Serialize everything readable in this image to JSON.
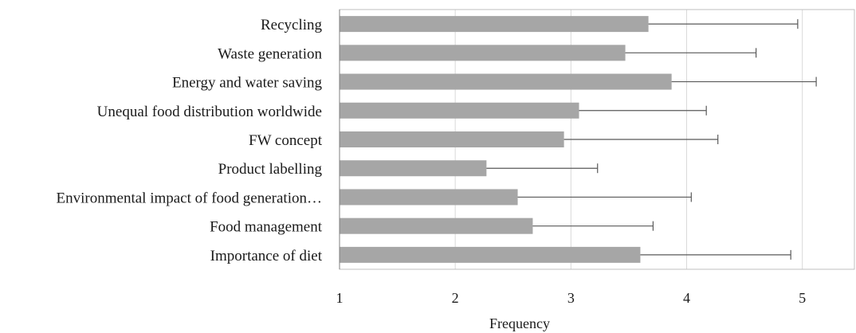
{
  "chart_data": {
    "type": "bar",
    "orientation": "horizontal",
    "categories": [
      "Recycling",
      "Waste generation",
      "Energy and water saving",
      "Unequal food distribution worldwide",
      "FW concept",
      "Product labelling",
      "Environmental impact of food generation…",
      "Food management",
      "Importance of diet"
    ],
    "series": [
      {
        "values": [
          3.67,
          3.47,
          3.87,
          3.07,
          2.94,
          2.27,
          2.54,
          2.67,
          3.6
        ],
        "error": [
          1.29,
          1.13,
          1.25,
          1.1,
          1.33,
          0.96,
          1.5,
          1.04,
          1.3
        ]
      }
    ],
    "xlabel": "Frequency",
    "ylabel": "",
    "xlim": [
      1,
      5.45
    ],
    "xticks": [
      1,
      2,
      3,
      4,
      5
    ],
    "grid": "vertical",
    "legend": "none",
    "colors": {
      "bar": "#a6a6a6",
      "error_bar": "#595959",
      "grid": "#d9d9d9",
      "frame": "#bfbfbf"
    }
  }
}
